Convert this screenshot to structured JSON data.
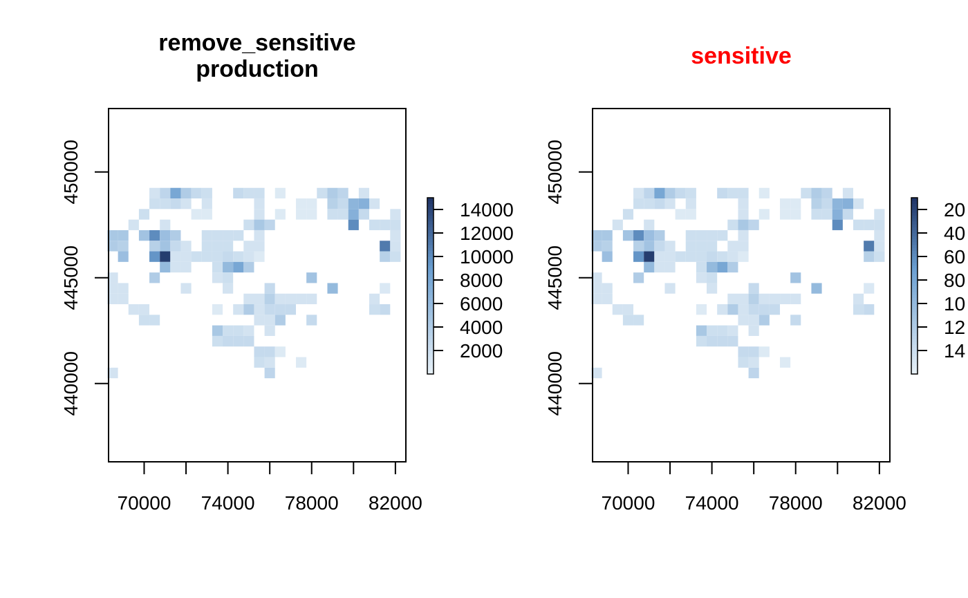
{
  "colors": {
    "low": "#e8f1f8",
    "mid": "#6a9ed0",
    "high": "#1f3466",
    "sensitive_title": "#ff0000",
    "default_title": "#000000"
  },
  "chart_data": [
    {
      "type": "heatmap",
      "title_lines": [
        "remove_sensitive",
        "production"
      ],
      "title_color": "#000000",
      "xlim": [
        68300,
        82500
      ],
      "ylim": [
        436300,
        453000
      ],
      "x_ticks": [
        70000,
        72000,
        74000,
        76000,
        78000,
        80000,
        82000
      ],
      "x_tick_labels": [
        {
          "value": 70000,
          "label": "70000"
        },
        {
          "value": 74000,
          "label": "74000"
        },
        {
          "value": 78000,
          "label": "78000"
        },
        {
          "value": 82000,
          "label": "82000"
        }
      ],
      "y_ticks": [
        440000,
        445000,
        450000
      ],
      "y_tick_labels": [
        {
          "value": 440000,
          "label": "440000"
        },
        {
          "value": 445000,
          "label": "445000"
        },
        {
          "value": 450000,
          "label": "450000"
        }
      ],
      "cell_size": 500,
      "cells": [
        [
          70500,
          449000,
          1500
        ],
        [
          71000,
          449000,
          3000
        ],
        [
          71500,
          449000,
          8000
        ],
        [
          72000,
          449000,
          4000
        ],
        [
          72500,
          449000,
          2500
        ],
        [
          73000,
          449000,
          2000
        ],
        [
          74500,
          449000,
          2500
        ],
        [
          75000,
          449000,
          2000
        ],
        [
          75500,
          449000,
          2000
        ],
        [
          76500,
          449000,
          800
        ],
        [
          78500,
          449000,
          2000
        ],
        [
          79000,
          449000,
          4000
        ],
        [
          79500,
          449000,
          3000
        ],
        [
          80500,
          449000,
          1500
        ],
        [
          70500,
          448500,
          2000
        ],
        [
          71000,
          448500,
          2000
        ],
        [
          71500,
          448500,
          2500
        ],
        [
          72000,
          448500,
          1500
        ],
        [
          73000,
          448500,
          1500
        ],
        [
          75500,
          448500,
          1500
        ],
        [
          77500,
          448500,
          800
        ],
        [
          78000,
          448500,
          800
        ],
        [
          79000,
          448500,
          3500
        ],
        [
          79500,
          448500,
          2500
        ],
        [
          80000,
          448500,
          6500
        ],
        [
          80500,
          448500,
          7000
        ],
        [
          81000,
          448500,
          1500
        ],
        [
          70000,
          448000,
          2000
        ],
        [
          72500,
          448000,
          800
        ],
        [
          73000,
          448000,
          800
        ],
        [
          75500,
          448000,
          1500
        ],
        [
          76500,
          448000,
          800
        ],
        [
          77500,
          448000,
          800
        ],
        [
          78000,
          448000,
          800
        ],
        [
          79000,
          448000,
          2000
        ],
        [
          79500,
          448000,
          2000
        ],
        [
          80000,
          448000,
          7000
        ],
        [
          80500,
          448000,
          2500
        ],
        [
          82000,
          448000,
          1500
        ],
        [
          69500,
          447500,
          1500
        ],
        [
          71000,
          447500,
          1500
        ],
        [
          75000,
          447500,
          2000
        ],
        [
          75500,
          447500,
          4500
        ],
        [
          76000,
          447500,
          3000
        ],
        [
          81500,
          447500,
          2000
        ],
        [
          82000,
          447500,
          2000
        ],
        [
          80000,
          447500,
          10000
        ],
        [
          81000,
          447500,
          2000
        ],
        [
          68500,
          447000,
          4500
        ],
        [
          69000,
          447000,
          4500
        ],
        [
          70000,
          447000,
          5000
        ],
        [
          70500,
          447000,
          10000
        ],
        [
          71000,
          447000,
          5500
        ],
        [
          71500,
          447000,
          4000
        ],
        [
          73000,
          447000,
          2000
        ],
        [
          73500,
          447000,
          2000
        ],
        [
          74000,
          447000,
          2000
        ],
        [
          74500,
          447000,
          2000
        ],
        [
          75500,
          447000,
          1500
        ],
        [
          82000,
          447000,
          1500
        ],
        [
          68500,
          446500,
          4000
        ],
        [
          69000,
          446500,
          3500
        ],
        [
          70500,
          446500,
          3500
        ],
        [
          71000,
          446500,
          5000
        ],
        [
          71500,
          446500,
          2500
        ],
        [
          72000,
          446500,
          1500
        ],
        [
          73000,
          446500,
          2000
        ],
        [
          73500,
          446500,
          2000
        ],
        [
          74000,
          446500,
          2000
        ],
        [
          75000,
          446500,
          1500
        ],
        [
          75500,
          446500,
          1500
        ],
        [
          81500,
          446500,
          11000
        ],
        [
          82000,
          446500,
          1500
        ],
        [
          69000,
          446000,
          5500
        ],
        [
          70500,
          446000,
          9500
        ],
        [
          71000,
          446000,
          14500
        ],
        [
          71500,
          446000,
          1500
        ],
        [
          72000,
          446000,
          1500
        ],
        [
          72500,
          446000,
          2000
        ],
        [
          73000,
          446000,
          2000
        ],
        [
          73500,
          446000,
          2000
        ],
        [
          74000,
          446000,
          2500
        ],
        [
          74500,
          446000,
          2000
        ],
        [
          75000,
          446000,
          1500
        ],
        [
          75500,
          446000,
          800
        ],
        [
          81500,
          446000,
          3500
        ],
        [
          82000,
          446000,
          2000
        ],
        [
          71000,
          445500,
          6000
        ],
        [
          71500,
          445500,
          1500
        ],
        [
          72000,
          445500,
          1500
        ],
        [
          73500,
          445500,
          2000
        ],
        [
          74000,
          445500,
          6000
        ],
        [
          74500,
          445500,
          8000
        ],
        [
          75000,
          445500,
          4000
        ],
        [
          68500,
          445000,
          1500
        ],
        [
          70500,
          445000,
          4000
        ],
        [
          73500,
          445000,
          1500
        ],
        [
          74000,
          445000,
          2000
        ],
        [
          78000,
          445000,
          5000
        ],
        [
          68500,
          444500,
          1500
        ],
        [
          69000,
          444500,
          1500
        ],
        [
          72000,
          444500,
          1500
        ],
        [
          74000,
          444500,
          1500
        ],
        [
          76000,
          444500,
          2500
        ],
        [
          79000,
          444500,
          6000
        ],
        [
          81500,
          444500,
          1000
        ],
        [
          68500,
          444000,
          1500
        ],
        [
          69000,
          444000,
          1500
        ],
        [
          75000,
          444000,
          1500
        ],
        [
          75500,
          444000,
          1500
        ],
        [
          76000,
          444000,
          3500
        ],
        [
          76500,
          444000,
          1500
        ],
        [
          77000,
          444000,
          1500
        ],
        [
          77500,
          444000,
          1500
        ],
        [
          78000,
          444000,
          1500
        ],
        [
          81000,
          444000,
          1500
        ],
        [
          69500,
          443500,
          1500
        ],
        [
          70000,
          443500,
          1500
        ],
        [
          73500,
          443500,
          800
        ],
        [
          74500,
          443500,
          1500
        ],
        [
          75000,
          443500,
          4000
        ],
        [
          75500,
          443500,
          1500
        ],
        [
          76000,
          443500,
          2500
        ],
        [
          76500,
          443500,
          2500
        ],
        [
          77000,
          443500,
          2500
        ],
        [
          81000,
          443500,
          2000
        ],
        [
          81500,
          443500,
          2500
        ],
        [
          70000,
          443000,
          2000
        ],
        [
          70500,
          443000,
          2000
        ],
        [
          75500,
          443000,
          1500
        ],
        [
          76000,
          443000,
          1500
        ],
        [
          76500,
          443000,
          4000
        ],
        [
          78000,
          443000,
          2500
        ],
        [
          73500,
          442500,
          4500
        ],
        [
          74000,
          442500,
          2000
        ],
        [
          74500,
          442500,
          2000
        ],
        [
          75000,
          442500,
          1500
        ],
        [
          76000,
          442500,
          1500
        ],
        [
          73500,
          442000,
          2000
        ],
        [
          74000,
          442000,
          2500
        ],
        [
          74500,
          442000,
          2500
        ],
        [
          75000,
          442000,
          2500
        ],
        [
          75500,
          441500,
          2500
        ],
        [
          76000,
          441500,
          2500
        ],
        [
          76500,
          441500,
          800
        ],
        [
          75500,
          441000,
          2000
        ],
        [
          76000,
          441000,
          1500
        ],
        [
          77500,
          441000,
          800
        ],
        [
          76000,
          440500,
          3000
        ],
        [
          68500,
          440500,
          1500
        ]
      ],
      "colorbar": {
        "range": [
          0,
          15000
        ],
        "ticks": [
          2000,
          4000,
          6000,
          8000,
          10000,
          12000,
          14000
        ],
        "tick_labels": [
          "2000",
          "4000",
          "6000",
          "8000",
          "10000",
          "12000",
          "14000"
        ]
      }
    },
    {
      "type": "heatmap",
      "title_lines": [
        "sensitive"
      ],
      "title_color": "#ff0000",
      "same_data_as": 0,
      "colorbar_tick_labels_visible": [
        "14",
        "12",
        "10",
        "80",
        "60",
        "40",
        "20"
      ]
    }
  ]
}
